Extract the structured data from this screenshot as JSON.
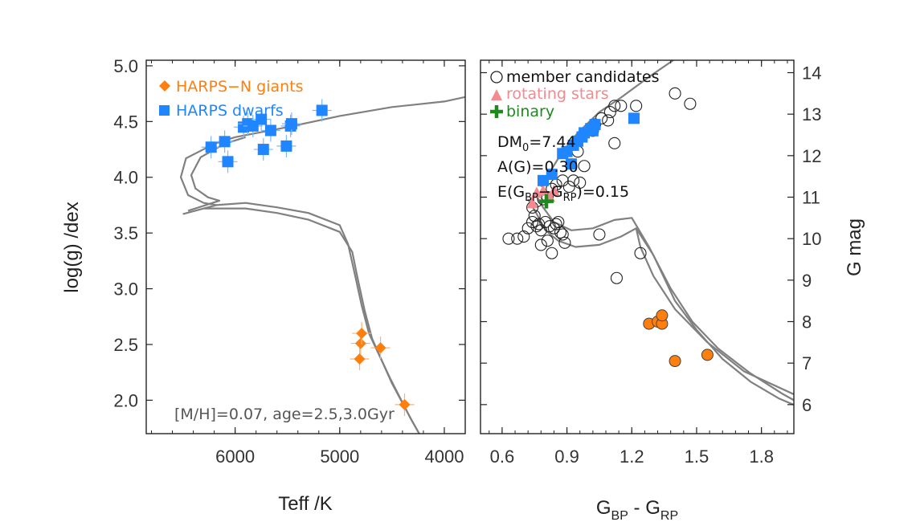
{
  "colors": {
    "giant": "#ff7f0e",
    "dwarf": "#1f86ff",
    "dwarf_err": "#7ab8ff",
    "giant_err": "#ffb070",
    "rotating": "#f48a90",
    "binary": "#1e8a1e",
    "member": "#222222",
    "isochrone": "#808080",
    "axis": "#222222",
    "annotation": "#555555"
  },
  "chart_data": [
    {
      "type": "scatter",
      "panel": "left",
      "xlabel": "Teff /K",
      "ylabel": "log(g) /dex",
      "xlim": [
        6850,
        3800
      ],
      "ylim": [
        5.05,
        1.7
      ],
      "x_ticks": [
        {
          "value": 6000,
          "label": "6000"
        },
        {
          "value": 5000,
          "label": "5000"
        },
        {
          "value": 4000,
          "label": "4000"
        }
      ],
      "y_ticks": [
        {
          "value": 2.0,
          "label": "2.0"
        },
        {
          "value": 2.5,
          "label": "2.5"
        },
        {
          "value": 3.0,
          "label": "3.0"
        },
        {
          "value": 3.5,
          "label": "3.5"
        },
        {
          "value": 4.0,
          "label": "4.0"
        },
        {
          "value": 4.5,
          "label": "4.5"
        },
        {
          "value": 5.0,
          "label": "5.0"
        }
      ],
      "legend": {
        "placement": "top-left",
        "entries": [
          {
            "label": "HARPS−N giants",
            "marker": "diamond",
            "color_key": "giant"
          },
          {
            "label": "HARPS dwarfs",
            "marker": "square",
            "color_key": "dwarf"
          }
        ]
      },
      "annotation": "[M/H]=0.07, age=2.5,3.0Gyr",
      "series": [
        {
          "name": "HARPS−N giants",
          "marker": "diamond",
          "points": [
            {
              "x": 4380,
              "y": 1.96
            },
            {
              "x": 4810,
              "y": 2.37
            },
            {
              "x": 4800,
              "y": 2.51
            },
            {
              "x": 4790,
              "y": 2.6
            },
            {
              "x": 4610,
              "y": 2.47
            }
          ]
        },
        {
          "name": "HARPS dwarfs",
          "marker": "square",
          "points": [
            {
              "x": 6230,
              "y": 4.27
            },
            {
              "x": 6100,
              "y": 4.32
            },
            {
              "x": 6070,
              "y": 4.14
            },
            {
              "x": 5920,
              "y": 4.45
            },
            {
              "x": 5880,
              "y": 4.48
            },
            {
              "x": 5830,
              "y": 4.46
            },
            {
              "x": 5750,
              "y": 4.52
            },
            {
              "x": 5730,
              "y": 4.25
            },
            {
              "x": 5660,
              "y": 4.42
            },
            {
              "x": 5510,
              "y": 4.28
            },
            {
              "x": 5470,
              "y": 4.46
            },
            {
              "x": 5460,
              "y": 4.48
            },
            {
              "x": 5170,
              "y": 4.6
            }
          ]
        },
        {
          "marker": "isochrone",
          "curves": [
            [
              [
                6500,
                3.67
              ],
              [
                6300,
                3.72
              ],
              [
                6180,
                3.75
              ],
              [
                6300,
                3.77
              ],
              [
                6450,
                3.84
              ],
              [
                6520,
                4.0
              ],
              [
                6470,
                4.17
              ],
              [
                6200,
                4.3
              ],
              [
                6000,
                4.36
              ],
              [
                5500,
                4.45
              ],
              [
                5000,
                4.55
              ],
              [
                4500,
                4.63
              ],
              [
                4000,
                4.68
              ],
              [
                3800,
                4.72
              ]
            ],
            [
              [
                6450,
                3.7
              ],
              [
                6250,
                3.76
              ],
              [
                6150,
                3.79
              ],
              [
                6260,
                3.82
              ],
              [
                6380,
                3.9
              ],
              [
                6420,
                4.02
              ],
              [
                6330,
                4.18
              ],
              [
                6100,
                4.3
              ],
              [
                5900,
                4.36
              ]
            ],
            [
              [
                6300,
                3.72
              ],
              [
                5900,
                3.72
              ],
              [
                5600,
                3.68
              ],
              [
                5300,
                3.62
              ],
              [
                5000,
                3.51
              ],
              [
                4880,
                3.33
              ],
              [
                4830,
                3.1
              ],
              [
                4760,
                2.8
              ],
              [
                4690,
                2.55
              ],
              [
                4500,
                2.15
              ],
              [
                4300,
                1.8
              ],
              [
                4180,
                1.6
              ]
            ],
            [
              [
                6180,
                3.75
              ],
              [
                5900,
                3.77
              ],
              [
                5600,
                3.73
              ],
              [
                5300,
                3.68
              ],
              [
                5000,
                3.57
              ],
              [
                4920,
                3.4
              ],
              [
                4860,
                3.15
              ],
              [
                4790,
                2.85
              ],
              [
                4720,
                2.6
              ],
              [
                4520,
                2.2
              ],
              [
                4330,
                1.85
              ],
              [
                4210,
                1.65
              ]
            ]
          ]
        }
      ]
    },
    {
      "type": "scatter",
      "panel": "right",
      "xlabel": "G_BP - G_RP",
      "ylabel": "G mag",
      "xlim": [
        0.5,
        1.95
      ],
      "ylim": [
        14.3,
        5.3
      ],
      "x_ticks": [
        {
          "value": 0.6,
          "label": "0.6"
        },
        {
          "value": 0.9,
          "label": "0.9"
        },
        {
          "value": 1.2,
          "label": "1.2"
        },
        {
          "value": 1.5,
          "label": "1.5"
        },
        {
          "value": 1.8,
          "label": "1.8"
        }
      ],
      "y_ticks": [
        {
          "value": 6,
          "label": "6"
        },
        {
          "value": 7,
          "label": "7"
        },
        {
          "value": 8,
          "label": "8"
        },
        {
          "value": 9,
          "label": "9"
        },
        {
          "value": 10,
          "label": "10"
        },
        {
          "value": 11,
          "label": "11"
        },
        {
          "value": 12,
          "label": "12"
        },
        {
          "value": 13,
          "label": "13"
        },
        {
          "value": 14,
          "label": "14"
        }
      ],
      "legend": {
        "placement": "top-left",
        "entries": [
          {
            "label": "member candidates",
            "marker": "open-circle",
            "color_key": "member"
          },
          {
            "label": "rotating stars",
            "marker": "triangle",
            "color_key": "rotating"
          },
          {
            "label": "binary",
            "marker": "plus",
            "color_key": "binary"
          }
        ]
      },
      "annotations": [
        {
          "main": "DM",
          "sub": "0",
          "rest": "=7.44"
        },
        {
          "main": "A(G)=0.30",
          "sub": "",
          "rest": ""
        }
      ],
      "annotation_ebv": {
        "prefix": "E(G",
        "sub1": "BP",
        "mid": "−G",
        "sub2": "RP",
        "suffix": ")=0.15"
      },
      "series": [
        {
          "name": "member candidates",
          "marker": "open-circle",
          "points": [
            {
              "x": 0.63,
              "y": 10.0
            },
            {
              "x": 0.67,
              "y": 10.0
            },
            {
              "x": 0.7,
              "y": 10.05
            },
            {
              "x": 0.72,
              "y": 10.25
            },
            {
              "x": 0.74,
              "y": 10.4
            },
            {
              "x": 0.75,
              "y": 10.55
            },
            {
              "x": 0.76,
              "y": 10.3
            },
            {
              "x": 0.78,
              "y": 10.2
            },
            {
              "x": 0.8,
              "y": 10.4
            },
            {
              "x": 0.82,
              "y": 10.3
            },
            {
              "x": 0.84,
              "y": 10.25
            },
            {
              "x": 0.85,
              "y": 10.35
            },
            {
              "x": 0.86,
              "y": 10.4
            },
            {
              "x": 0.87,
              "y": 10.15
            },
            {
              "x": 0.83,
              "y": 9.65
            },
            {
              "x": 0.78,
              "y": 9.85
            },
            {
              "x": 0.81,
              "y": 9.95
            },
            {
              "x": 0.88,
              "y": 10.1
            },
            {
              "x": 0.89,
              "y": 9.9
            },
            {
              "x": 0.74,
              "y": 10.75
            },
            {
              "x": 0.76,
              "y": 10.9
            },
            {
              "x": 0.79,
              "y": 10.95
            },
            {
              "x": 0.81,
              "y": 11.0
            },
            {
              "x": 0.83,
              "y": 11.2
            },
            {
              "x": 0.85,
              "y": 11.3
            },
            {
              "x": 0.88,
              "y": 11.4
            },
            {
              "x": 0.91,
              "y": 11.25
            },
            {
              "x": 0.93,
              "y": 11.4
            },
            {
              "x": 0.96,
              "y": 11.35
            },
            {
              "x": 0.98,
              "y": 11.75
            },
            {
              "x": 0.95,
              "y": 12.1
            },
            {
              "x": 1.02,
              "y": 12.6
            },
            {
              "x": 1.03,
              "y": 12.75
            },
            {
              "x": 1.06,
              "y": 12.9
            },
            {
              "x": 1.09,
              "y": 12.85
            },
            {
              "x": 1.1,
              "y": 13.05
            },
            {
              "x": 1.12,
              "y": 13.2
            },
            {
              "x": 1.15,
              "y": 13.2
            },
            {
              "x": 1.22,
              "y": 13.2
            },
            {
              "x": 1.12,
              "y": 12.3
            },
            {
              "x": 1.4,
              "y": 13.5
            },
            {
              "x": 1.47,
              "y": 13.25
            },
            {
              "x": 1.13,
              "y": 9.05
            },
            {
              "x": 1.24,
              "y": 9.65
            },
            {
              "x": 1.05,
              "y": 10.1
            },
            {
              "x": 0.77,
              "y": 10.35
            }
          ]
        },
        {
          "name": "rotating stars",
          "marker": "triangle",
          "points": [
            {
              "x": 0.74,
              "y": 10.85
            },
            {
              "x": 0.76,
              "y": 11.1
            },
            {
              "x": 0.79,
              "y": 11.15
            },
            {
              "x": 0.82,
              "y": 11.0
            },
            {
              "x": 0.84,
              "y": 11.15
            }
          ]
        },
        {
          "name": "binary",
          "marker": "plus",
          "points": [
            {
              "x": 0.805,
              "y": 10.9
            }
          ]
        },
        {
          "name": "HARPS dwarfs",
          "marker": "square",
          "points": [
            {
              "x": 0.79,
              "y": 11.4
            },
            {
              "x": 0.83,
              "y": 11.55
            },
            {
              "x": 0.88,
              "y": 12.05
            },
            {
              "x": 0.9,
              "y": 12.1
            },
            {
              "x": 0.92,
              "y": 11.8
            },
            {
              "x": 0.93,
              "y": 12.25
            },
            {
              "x": 0.95,
              "y": 12.35
            },
            {
              "x": 0.97,
              "y": 12.45
            },
            {
              "x": 0.98,
              "y": 12.55
            },
            {
              "x": 1.01,
              "y": 12.65
            },
            {
              "x": 1.02,
              "y": 12.6
            },
            {
              "x": 1.03,
              "y": 12.75
            },
            {
              "x": 1.21,
              "y": 12.9
            }
          ]
        },
        {
          "name": "HARPS−N giants",
          "marker": "filled-circle",
          "points": [
            {
              "x": 1.4,
              "y": 7.05
            },
            {
              "x": 1.55,
              "y": 7.2
            },
            {
              "x": 1.28,
              "y": 7.95
            },
            {
              "x": 1.32,
              "y": 8.0
            },
            {
              "x": 1.34,
              "y": 7.95
            },
            {
              "x": 1.34,
              "y": 8.15
            }
          ]
        },
        {
          "marker": "isochrone",
          "curves": [
            [
              [
                0.72,
                10.95
              ],
              [
                0.76,
                10.6
              ],
              [
                0.8,
                10.2
              ],
              [
                0.86,
                9.95
              ],
              [
                0.94,
                9.8
              ],
              [
                1.05,
                9.85
              ],
              [
                1.15,
                10.05
              ],
              [
                1.22,
                10.25
              ],
              [
                1.3,
                9.6
              ],
              [
                1.4,
                8.5
              ],
              [
                1.5,
                7.8
              ],
              [
                1.62,
                7.1
              ],
              [
                1.75,
                6.55
              ],
              [
                1.88,
                6.15
              ],
              [
                1.97,
                5.95
              ]
            ],
            [
              [
                0.75,
                11.1
              ],
              [
                0.79,
                10.75
              ],
              [
                0.84,
                10.4
              ],
              [
                0.92,
                10.2
              ],
              [
                1.02,
                10.25
              ],
              [
                1.12,
                10.45
              ],
              [
                1.2,
                10.5
              ],
              [
                1.28,
                9.8
              ],
              [
                1.38,
                8.8
              ],
              [
                1.48,
                8.0
              ],
              [
                1.6,
                7.35
              ],
              [
                1.75,
                6.75
              ],
              [
                1.9,
                6.25
              ],
              [
                1.97,
                6.05
              ]
            ],
            [
              [
                0.78,
                11.25
              ],
              [
                0.82,
                11.6
              ],
              [
                0.88,
                12.1
              ],
              [
                0.95,
                12.55
              ],
              [
                1.05,
                13.05
              ],
              [
                1.15,
                13.4
              ],
              [
                1.28,
                13.9
              ],
              [
                1.42,
                14.4
              ]
            ],
            [
              [
                1.22,
                10.25
              ],
              [
                1.24,
                9.8
              ],
              [
                1.3,
                9.1
              ],
              [
                1.4,
                8.3
              ],
              [
                1.55,
                7.5
              ],
              [
                1.72,
                6.8
              ],
              [
                1.97,
                6.2
              ]
            ]
          ]
        }
      ]
    }
  ]
}
